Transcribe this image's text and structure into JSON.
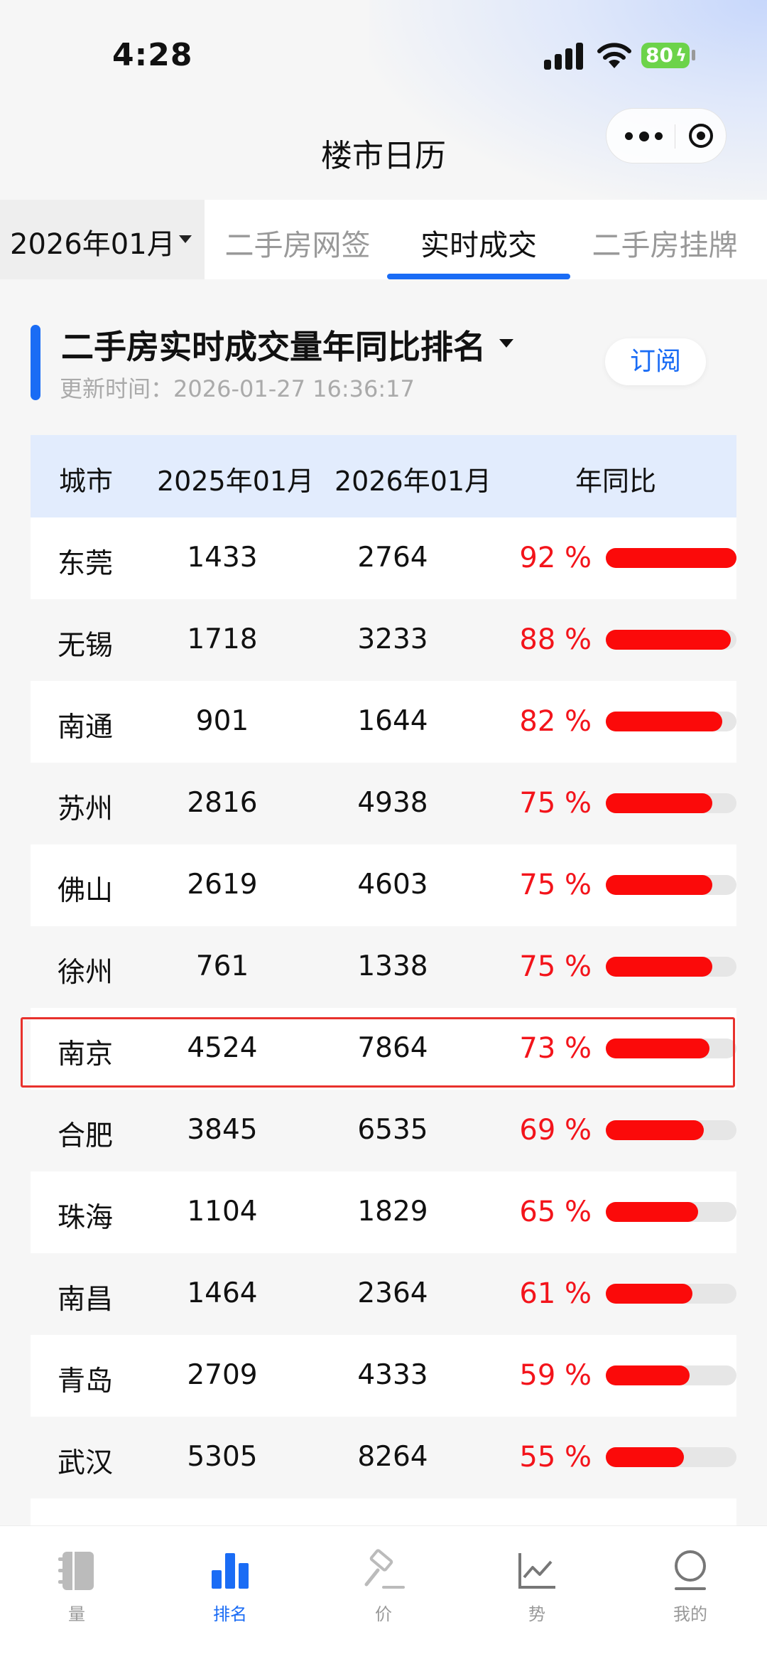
{
  "status_bar": {
    "time": "4:28",
    "battery": "80"
  },
  "title_bar": {
    "title": "楼市日历"
  },
  "tabs": {
    "month": "2026年01月",
    "items": [
      {
        "label": "二手房网签",
        "active": false
      },
      {
        "label": "实时成交",
        "active": true
      },
      {
        "label": "二手房挂牌",
        "active": false
      }
    ]
  },
  "section": {
    "title": "二手房实时成交量年同比排名",
    "update_time": "更新时间：2026-01-27 16:36:17",
    "subscribe_label": "订阅"
  },
  "table": {
    "headers": [
      "城市",
      "2025年01月",
      "2026年01月",
      "年同比"
    ],
    "rows": [
      {
        "city": "东莞",
        "v2025": "1433",
        "v2026": "2764",
        "yoy": "92 %",
        "yoy_value": 92
      },
      {
        "city": "无锡",
        "v2025": "1718",
        "v2026": "3233",
        "yoy": "88 %",
        "yoy_value": 88
      },
      {
        "city": "南通",
        "v2025": "901",
        "v2026": "1644",
        "yoy": "82 %",
        "yoy_value": 82
      },
      {
        "city": "苏州",
        "v2025": "2816",
        "v2026": "4938",
        "yoy": "75 %",
        "yoy_value": 75
      },
      {
        "city": "佛山",
        "v2025": "2619",
        "v2026": "4603",
        "yoy": "75 %",
        "yoy_value": 75
      },
      {
        "city": "徐州",
        "v2025": "761",
        "v2026": "1338",
        "yoy": "75 %",
        "yoy_value": 75
      },
      {
        "city": "南京",
        "v2025": "4524",
        "v2026": "7864",
        "yoy": "73 %",
        "yoy_value": 73,
        "highlighted": true
      },
      {
        "city": "合肥",
        "v2025": "3845",
        "v2026": "6535",
        "yoy": "69 %",
        "yoy_value": 69
      },
      {
        "city": "珠海",
        "v2025": "1104",
        "v2026": "1829",
        "yoy": "65 %",
        "yoy_value": 65
      },
      {
        "city": "南昌",
        "v2025": "1464",
        "v2026": "2364",
        "yoy": "61 %",
        "yoy_value": 61
      },
      {
        "city": "青岛",
        "v2025": "2709",
        "v2026": "4333",
        "yoy": "59 %",
        "yoy_value": 59
      },
      {
        "city": "武汉",
        "v2025": "5305",
        "v2026": "8264",
        "yoy": "55 %",
        "yoy_value": 55
      }
    ],
    "bar_max_value": 92,
    "colors": {
      "bar_fill": "#fb0a0a",
      "bar_track": "#e6e6e6",
      "yoy_text": "#f3141b",
      "highlight_border": "#e8312c"
    }
  },
  "bottom_nav": [
    {
      "label": "量",
      "icon": "book-icon",
      "active": false
    },
    {
      "label": "排名",
      "icon": "bar-chart-icon",
      "active": true
    },
    {
      "label": "价",
      "icon": "gavel-icon",
      "active": false
    },
    {
      "label": "势",
      "icon": "trend-icon",
      "active": false
    },
    {
      "label": "我的",
      "icon": "user-icon",
      "active": false
    }
  ],
  "accent_color": "#1a6cf5"
}
